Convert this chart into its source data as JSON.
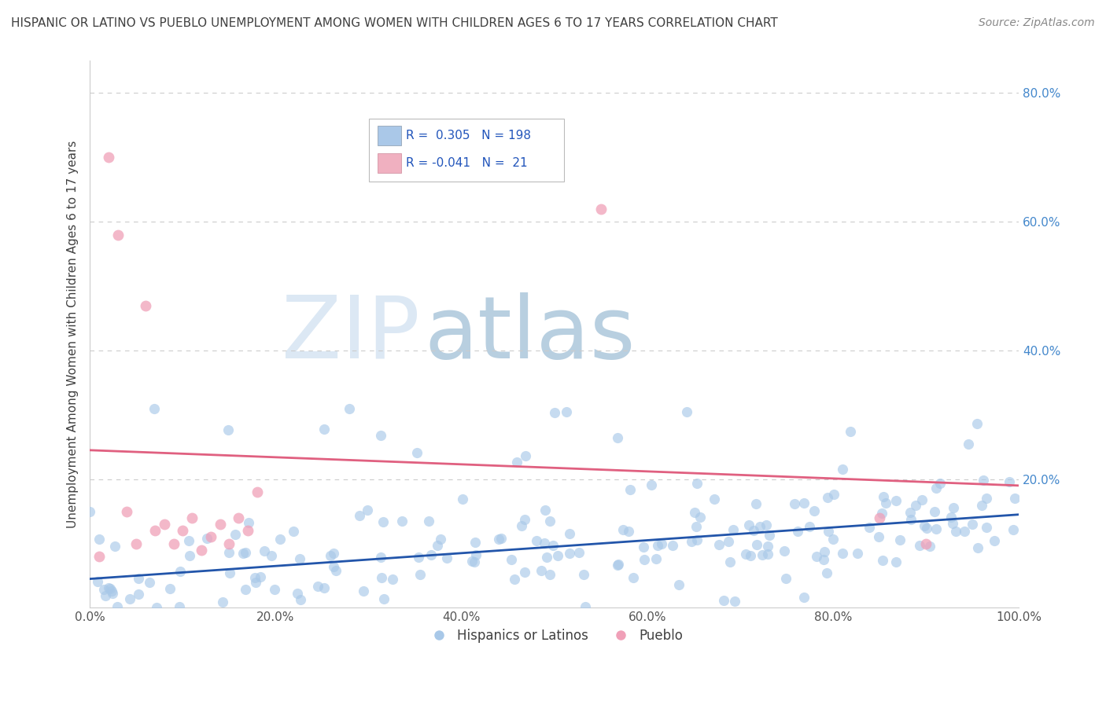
{
  "title": "HISPANIC OR LATINO VS PUEBLO UNEMPLOYMENT AMONG WOMEN WITH CHILDREN AGES 6 TO 17 YEARS CORRELATION CHART",
  "source": "Source: ZipAtlas.com",
  "ylabel": "Unemployment Among Women with Children Ages 6 to 17 years",
  "legend1_label": "Hispanics or Latinos",
  "legend2_label": "Pueblo",
  "r1": 0.305,
  "n1": 198,
  "r2": -0.041,
  "n2": 21,
  "blue_scatter_color": "#a8c8e8",
  "pink_scatter_color": "#f0a0b8",
  "blue_line_color": "#2255aa",
  "pink_line_color": "#e06080",
  "legend_box_blue": "#aac8e8",
  "legend_box_pink": "#f0b0c0",
  "background_color": "#ffffff",
  "grid_color": "#cccccc",
  "title_color": "#404040",
  "watermark_zip": "#d8e4f0",
  "watermark_atlas": "#c8d8e8",
  "ytick_color": "#4488cc",
  "xtick_color": "#555555",
  "blue_line_intercept": 0.045,
  "blue_line_slope": 0.1,
  "pink_line_intercept": 0.245,
  "pink_line_slope": -0.055,
  "xlim": [
    0,
    1
  ],
  "ylim": [
    0,
    0.85
  ],
  "yticks": [
    0.0,
    0.2,
    0.4,
    0.6,
    0.8
  ],
  "ytick_labels": [
    "",
    "20.0%",
    "40.0%",
    "60.0%",
    "80.0%"
  ],
  "xticks": [
    0.0,
    0.2,
    0.4,
    0.6,
    0.8,
    1.0
  ],
  "xtick_labels": [
    "0.0%",
    "20.0%",
    "40.0%",
    "60.0%",
    "80.0%",
    "100.0%"
  ]
}
